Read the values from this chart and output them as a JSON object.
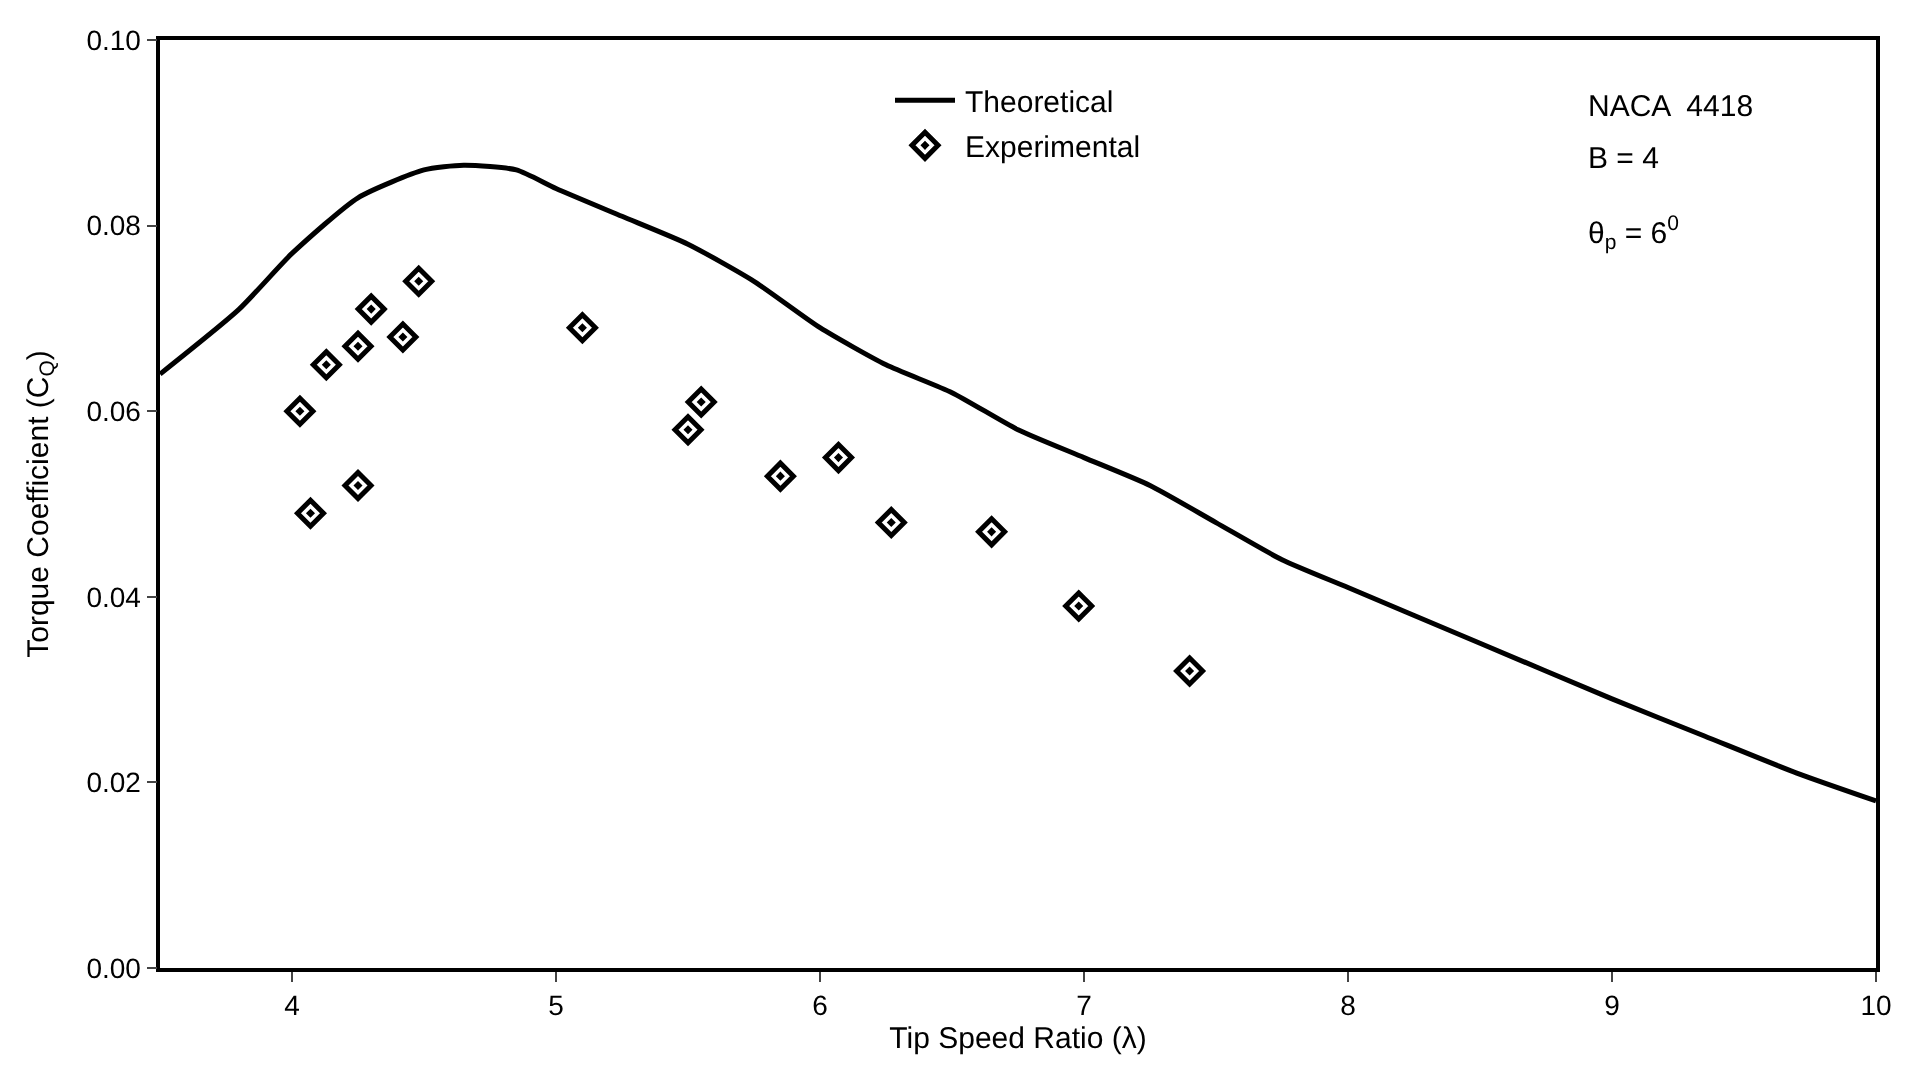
{
  "chart_data": {
    "type": "scatter",
    "xlabel": "Tip Speed Ratio (λ)",
    "ylabel": "Torque Coefficient (C$_{Q}$)",
    "xlim": [
      3.5,
      10
    ],
    "xticks": [
      4,
      5,
      6,
      7,
      8,
      9,
      10
    ],
    "ylim": [
      0,
      0.1
    ],
    "yticks": [
      {
        "value": 0,
        "label": "0.00"
      },
      {
        "value": 0.02,
        "label": "0.02"
      },
      {
        "value": 0.04,
        "label": "0.04"
      },
      {
        "value": 0.06,
        "label": "0.06"
      },
      {
        "value": 0.08,
        "label": "0.08"
      },
      {
        "value": 0.1,
        "label": "0.10"
      }
    ],
    "legend": "top",
    "series": [
      {
        "name": "Theoretical",
        "type": "line",
        "color": "#000000",
        "marker": "none",
        "line_style": "solid",
        "x": [
          3.5,
          3.8,
          4.0,
          4.25,
          4.5,
          4.65,
          4.85,
          5.0,
          5.25,
          5.5,
          5.75,
          6.0,
          6.25,
          6.5,
          6.75,
          7.0,
          7.25,
          7.5,
          7.75,
          8.0,
          8.5,
          9.0,
          9.35,
          9.7,
          10
        ],
        "values": [
          0.064,
          0.071,
          0.077,
          0.083,
          0.086,
          0.0865,
          0.086,
          0.084,
          0.081,
          0.078,
          0.074,
          0.069,
          0.065,
          0.062,
          0.058,
          0.055,
          0.052,
          0.048,
          0.044,
          0.041,
          0.035,
          0.029,
          0.025,
          0.021,
          0.018
        ]
      },
      {
        "name": "Experimental",
        "color": "#000000",
        "marker": "diamond",
        "x": [
          4.03,
          4.07,
          4.13,
          4.25,
          4.25,
          4.3,
          4.42,
          4.48,
          5.1,
          5.5,
          5.55,
          5.85,
          6.07,
          6.27,
          6.65,
          6.98,
          7.4
        ],
        "values": [
          0.06,
          0.049,
          0.065,
          0.052,
          0.067,
          0.071,
          0.068,
          0.074,
          0.069,
          0.058,
          0.061,
          0.053,
          0.055,
          0.048,
          0.047,
          0.039,
          0.032
        ]
      }
    ],
    "annotations": [
      {
        "text": "NACA  4418"
      },
      {
        "text": "B = 4"
      },
      {
        "text": "θ$_{p}$ = 6$^{0}$"
      }
    ]
  }
}
